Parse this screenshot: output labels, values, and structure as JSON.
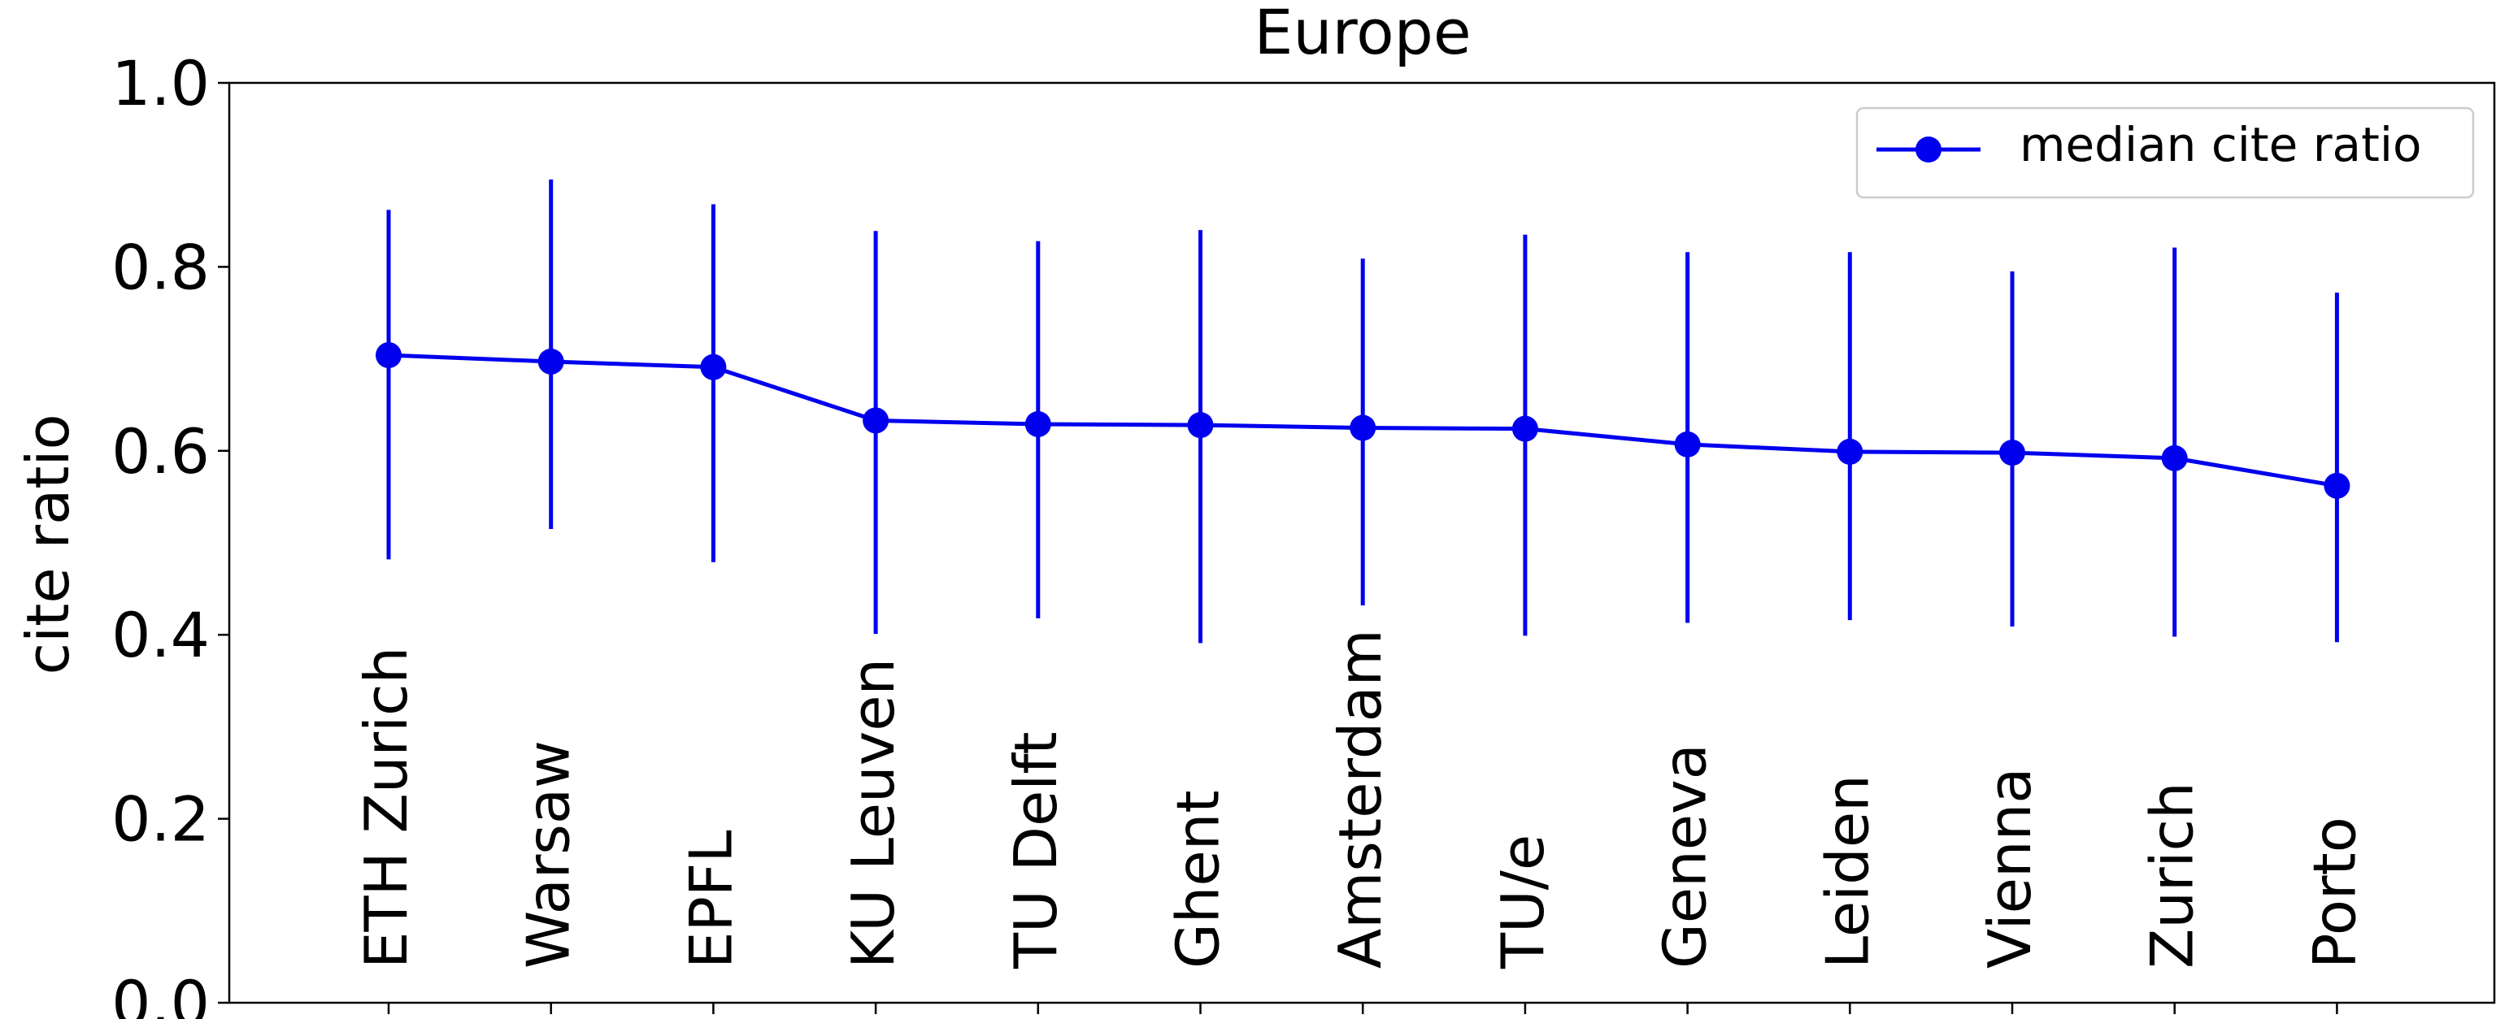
{
  "chart_data": {
    "type": "line",
    "title": "Europe",
    "xlabel": "",
    "ylabel": "cite ratio",
    "ylim": [
      0.0,
      1.0
    ],
    "yticks": [
      "0.0",
      "0.2",
      "0.4",
      "0.6",
      "0.8",
      "1.0"
    ],
    "grid": false,
    "legend_position": "top-right",
    "categories": [
      "ETH Zurich",
      "Warsaw",
      "EPFL",
      "KU Leuven",
      "TU Delft",
      "Ghent",
      "Amsterdam",
      "TU/e",
      "Geneva",
      "Leiden",
      "Vienna",
      "Zurich",
      "Porto"
    ],
    "series": [
      {
        "name": "median cite ratio",
        "color": "#0000ee",
        "marker": "circle",
        "values": [
          0.704,
          0.697,
          0.691,
          0.633,
          0.629,
          0.628,
          0.625,
          0.624,
          0.607,
          0.599,
          0.598,
          0.592,
          0.562
        ],
        "error_low": [
          0.482,
          0.515,
          0.479,
          0.401,
          0.418,
          0.391,
          0.432,
          0.399,
          0.413,
          0.416,
          0.409,
          0.398,
          0.392
        ],
        "error_high": [
          0.862,
          0.895,
          0.868,
          0.839,
          0.828,
          0.84,
          0.809,
          0.835,
          0.816,
          0.816,
          0.795,
          0.821,
          0.772
        ]
      }
    ]
  }
}
